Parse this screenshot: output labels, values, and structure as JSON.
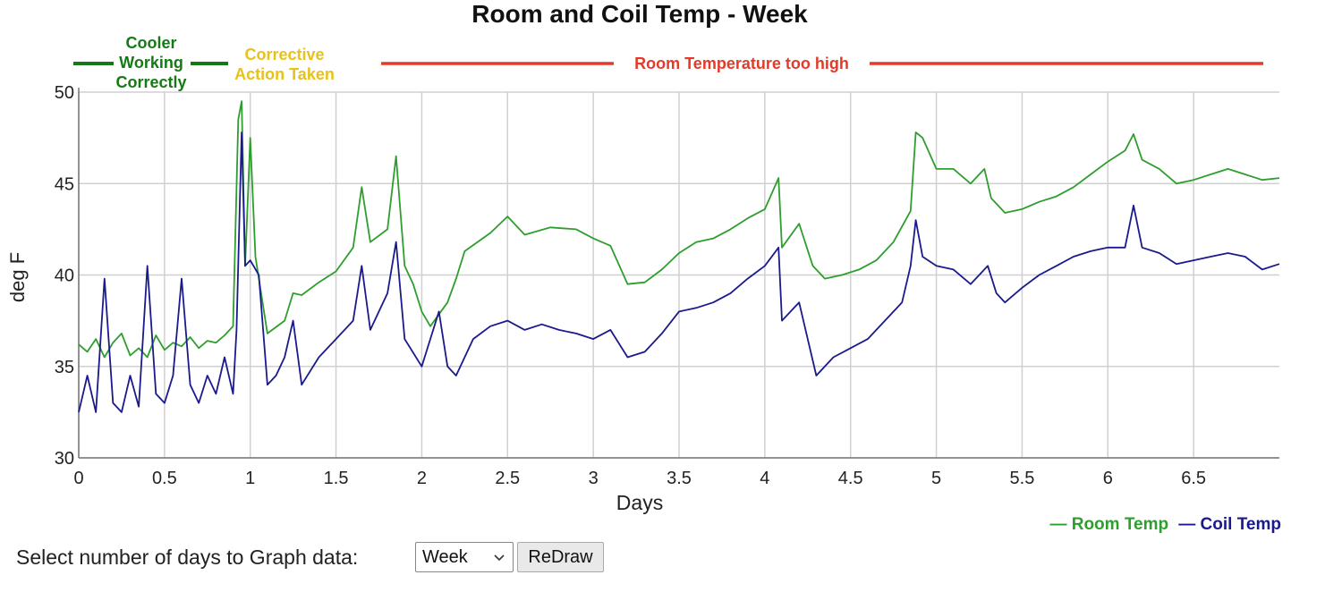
{
  "chart_data": {
    "type": "line",
    "title": "Room and Coil Temp - Week",
    "xlabel": "Days",
    "ylabel": "deg F",
    "xlim": [
      0,
      7
    ],
    "ylim": [
      30,
      50
    ],
    "x_ticks": [
      "0",
      "0.5",
      "1",
      "1.5",
      "2",
      "2.5",
      "3",
      "3.5",
      "4",
      "4.5",
      "5",
      "5.5",
      "6",
      "6.5"
    ],
    "y_ticks": [
      "30",
      "35",
      "40",
      "45",
      "50"
    ],
    "grid": true,
    "legend_position": "bottom-right",
    "series": [
      {
        "name": "Room Temp",
        "color": "#2e9e2e",
        "points": [
          [
            0,
            36.2
          ],
          [
            0.05,
            35.8
          ],
          [
            0.1,
            36.5
          ],
          [
            0.15,
            35.5
          ],
          [
            0.2,
            36.3
          ],
          [
            0.25,
            36.8
          ],
          [
            0.3,
            35.6
          ],
          [
            0.35,
            36.0
          ],
          [
            0.4,
            35.5
          ],
          [
            0.45,
            36.7
          ],
          [
            0.5,
            35.9
          ],
          [
            0.55,
            36.3
          ],
          [
            0.6,
            36.1
          ],
          [
            0.65,
            36.6
          ],
          [
            0.7,
            36.0
          ],
          [
            0.75,
            36.4
          ],
          [
            0.8,
            36.3
          ],
          [
            0.85,
            36.7
          ],
          [
            0.9,
            37.2
          ],
          [
            0.93,
            48.5
          ],
          [
            0.95,
            49.5
          ],
          [
            0.97,
            40.5
          ],
          [
            1.0,
            47.5
          ],
          [
            1.03,
            41.0
          ],
          [
            1.1,
            36.8
          ],
          [
            1.2,
            37.5
          ],
          [
            1.25,
            39.0
          ],
          [
            1.3,
            38.9
          ],
          [
            1.4,
            39.6
          ],
          [
            1.5,
            40.2
          ],
          [
            1.6,
            41.5
          ],
          [
            1.65,
            44.8
          ],
          [
            1.7,
            41.8
          ],
          [
            1.8,
            42.5
          ],
          [
            1.85,
            46.5
          ],
          [
            1.9,
            40.5
          ],
          [
            1.95,
            39.5
          ],
          [
            2.0,
            38.0
          ],
          [
            2.05,
            37.2
          ],
          [
            2.15,
            38.5
          ],
          [
            2.2,
            39.8
          ],
          [
            2.25,
            41.3
          ],
          [
            2.4,
            42.3
          ],
          [
            2.5,
            43.2
          ],
          [
            2.6,
            42.2
          ],
          [
            2.75,
            42.6
          ],
          [
            2.9,
            42.5
          ],
          [
            3.0,
            42.0
          ],
          [
            3.1,
            41.6
          ],
          [
            3.2,
            39.5
          ],
          [
            3.3,
            39.6
          ],
          [
            3.4,
            40.3
          ],
          [
            3.5,
            41.2
          ],
          [
            3.6,
            41.8
          ],
          [
            3.7,
            42.0
          ],
          [
            3.8,
            42.5
          ],
          [
            3.9,
            43.1
          ],
          [
            4.0,
            43.6
          ],
          [
            4.08,
            45.3
          ],
          [
            4.1,
            41.5
          ],
          [
            4.2,
            42.8
          ],
          [
            4.28,
            40.5
          ],
          [
            4.35,
            39.8
          ],
          [
            4.45,
            40.0
          ],
          [
            4.55,
            40.3
          ],
          [
            4.65,
            40.8
          ],
          [
            4.75,
            41.8
          ],
          [
            4.85,
            43.5
          ],
          [
            4.88,
            47.8
          ],
          [
            4.92,
            47.5
          ],
          [
            5.0,
            45.8
          ],
          [
            5.1,
            45.8
          ],
          [
            5.2,
            45.0
          ],
          [
            5.28,
            45.8
          ],
          [
            5.32,
            44.2
          ],
          [
            5.4,
            43.4
          ],
          [
            5.5,
            43.6
          ],
          [
            5.6,
            44.0
          ],
          [
            5.7,
            44.3
          ],
          [
            5.8,
            44.8
          ],
          [
            5.9,
            45.5
          ],
          [
            6.0,
            46.2
          ],
          [
            6.1,
            46.8
          ],
          [
            6.15,
            47.7
          ],
          [
            6.2,
            46.3
          ],
          [
            6.3,
            45.8
          ],
          [
            6.4,
            45.0
          ],
          [
            6.5,
            45.2
          ],
          [
            6.6,
            45.5
          ],
          [
            6.7,
            45.8
          ],
          [
            6.8,
            45.5
          ],
          [
            6.9,
            45.2
          ],
          [
            7.0,
            45.3
          ]
        ]
      },
      {
        "name": "Coil Temp",
        "color": "#1a1a8c",
        "points": [
          [
            0,
            32.5
          ],
          [
            0.05,
            34.5
          ],
          [
            0.1,
            32.5
          ],
          [
            0.15,
            39.8
          ],
          [
            0.2,
            33.0
          ],
          [
            0.25,
            32.5
          ],
          [
            0.3,
            34.5
          ],
          [
            0.35,
            32.8
          ],
          [
            0.4,
            40.5
          ],
          [
            0.45,
            33.5
          ],
          [
            0.5,
            33.0
          ],
          [
            0.55,
            34.5
          ],
          [
            0.6,
            39.8
          ],
          [
            0.65,
            34.0
          ],
          [
            0.7,
            33.0
          ],
          [
            0.75,
            34.5
          ],
          [
            0.8,
            33.5
          ],
          [
            0.85,
            35.5
          ],
          [
            0.9,
            33.5
          ],
          [
            0.92,
            37.0
          ],
          [
            0.95,
            47.8
          ],
          [
            0.97,
            40.5
          ],
          [
            1.0,
            40.8
          ],
          [
            1.05,
            40.0
          ],
          [
            1.1,
            34.0
          ],
          [
            1.15,
            34.5
          ],
          [
            1.2,
            35.5
          ],
          [
            1.25,
            37.5
          ],
          [
            1.3,
            34.0
          ],
          [
            1.4,
            35.5
          ],
          [
            1.5,
            36.5
          ],
          [
            1.6,
            37.5
          ],
          [
            1.65,
            40.5
          ],
          [
            1.7,
            37.0
          ],
          [
            1.8,
            39.0
          ],
          [
            1.85,
            41.8
          ],
          [
            1.9,
            36.5
          ],
          [
            2.0,
            35.0
          ],
          [
            2.05,
            36.5
          ],
          [
            2.1,
            38.0
          ],
          [
            2.15,
            35.0
          ],
          [
            2.2,
            34.5
          ],
          [
            2.3,
            36.5
          ],
          [
            2.4,
            37.2
          ],
          [
            2.5,
            37.5
          ],
          [
            2.6,
            37.0
          ],
          [
            2.7,
            37.3
          ],
          [
            2.8,
            37.0
          ],
          [
            2.9,
            36.8
          ],
          [
            3.0,
            36.5
          ],
          [
            3.1,
            37.0
          ],
          [
            3.2,
            35.5
          ],
          [
            3.3,
            35.8
          ],
          [
            3.4,
            36.8
          ],
          [
            3.5,
            38.0
          ],
          [
            3.6,
            38.2
          ],
          [
            3.7,
            38.5
          ],
          [
            3.8,
            39.0
          ],
          [
            3.9,
            39.8
          ],
          [
            4.0,
            40.5
          ],
          [
            4.08,
            41.5
          ],
          [
            4.1,
            37.5
          ],
          [
            4.2,
            38.5
          ],
          [
            4.25,
            36.5
          ],
          [
            4.3,
            34.5
          ],
          [
            4.4,
            35.5
          ],
          [
            4.5,
            36.0
          ],
          [
            4.6,
            36.5
          ],
          [
            4.7,
            37.5
          ],
          [
            4.8,
            38.5
          ],
          [
            4.85,
            40.5
          ],
          [
            4.88,
            43.0
          ],
          [
            4.92,
            41.0
          ],
          [
            5.0,
            40.5
          ],
          [
            5.1,
            40.3
          ],
          [
            5.2,
            39.5
          ],
          [
            5.3,
            40.5
          ],
          [
            5.35,
            39.0
          ],
          [
            5.4,
            38.5
          ],
          [
            5.5,
            39.3
          ],
          [
            5.6,
            40.0
          ],
          [
            5.7,
            40.5
          ],
          [
            5.8,
            41.0
          ],
          [
            5.9,
            41.3
          ],
          [
            6.0,
            41.5
          ],
          [
            6.1,
            41.5
          ],
          [
            6.15,
            43.8
          ],
          [
            6.2,
            41.5
          ],
          [
            6.3,
            41.2
          ],
          [
            6.4,
            40.6
          ],
          [
            6.5,
            40.8
          ],
          [
            6.6,
            41.0
          ],
          [
            6.7,
            41.2
          ],
          [
            6.8,
            41.0
          ],
          [
            6.9,
            40.3
          ],
          [
            7.0,
            40.6
          ]
        ]
      }
    ],
    "annotations": [
      {
        "text_lines": [
          "Cooler",
          "Working",
          "Correctly"
        ],
        "color": "#157a15",
        "from_x": 0,
        "to_x": 0.85
      },
      {
        "text_lines": [
          "Corrective",
          "Action Taken"
        ],
        "color": "#e8c21a"
      },
      {
        "text_lines": [
          "Room Temperature too high"
        ],
        "color": "#e23b2a",
        "from_x": 1.75,
        "to_x": 6.9
      }
    ]
  },
  "controls": {
    "label": "Select number of days to Graph data:",
    "select_value": "Week",
    "redraw_label": "ReDraw"
  },
  "icons": {
    "dropdown": "chevron-down-icon"
  }
}
